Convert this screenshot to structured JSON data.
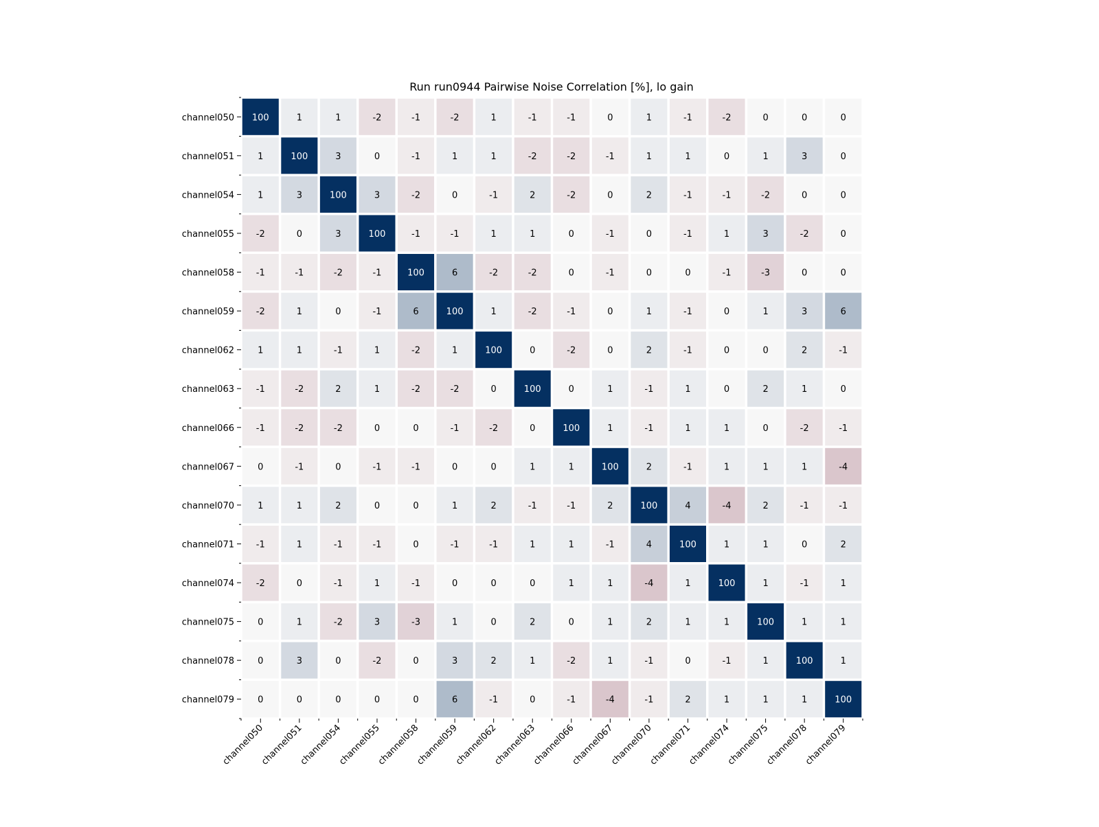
{
  "chart_data": {
    "type": "heatmap",
    "title": "Run run0944 Pairwise Noise Correlation [%], lo gain",
    "xlabel": "",
    "ylabel": "",
    "labels": [
      "channel050",
      "channel051",
      "channel054",
      "channel055",
      "channel058",
      "channel059",
      "channel062",
      "channel063",
      "channel066",
      "channel067",
      "channel070",
      "channel071",
      "channel074",
      "channel075",
      "channel078",
      "channel079"
    ],
    "matrix": [
      [
        100,
        1,
        1,
        -2,
        -1,
        -2,
        1,
        -1,
        -1,
        0,
        1,
        -1,
        -2,
        0,
        0,
        0
      ],
      [
        1,
        100,
        3,
        0,
        -1,
        1,
        1,
        -2,
        -2,
        -1,
        1,
        1,
        0,
        1,
        3,
        0
      ],
      [
        1,
        3,
        100,
        3,
        -2,
        0,
        -1,
        2,
        -2,
        0,
        2,
        -1,
        -1,
        -2,
        0,
        0
      ],
      [
        -2,
        0,
        3,
        100,
        -1,
        -1,
        1,
        1,
        0,
        -1,
        0,
        -1,
        1,
        3,
        -2,
        0
      ],
      [
        -1,
        -1,
        -2,
        -1,
        100,
        6,
        -2,
        -2,
        0,
        -1,
        0,
        0,
        -1,
        -3,
        0,
        0
      ],
      [
        -2,
        1,
        0,
        -1,
        6,
        100,
        1,
        -2,
        -1,
        0,
        1,
        -1,
        0,
        1,
        3,
        6
      ],
      [
        1,
        1,
        -1,
        1,
        -2,
        1,
        100,
        0,
        -2,
        0,
        2,
        -1,
        0,
        0,
        2,
        -1
      ],
      [
        -1,
        -2,
        2,
        1,
        -2,
        -2,
        0,
        100,
        0,
        1,
        -1,
        1,
        0,
        2,
        1,
        0
      ],
      [
        -1,
        -2,
        -2,
        0,
        0,
        -1,
        -2,
        0,
        100,
        1,
        -1,
        1,
        1,
        0,
        -2,
        -1
      ],
      [
        0,
        -1,
        0,
        -1,
        -1,
        0,
        0,
        1,
        1,
        100,
        2,
        -1,
        1,
        1,
        1,
        -4
      ],
      [
        1,
        1,
        2,
        0,
        0,
        1,
        2,
        -1,
        -1,
        2,
        100,
        4,
        -4,
        2,
        -1,
        -1
      ],
      [
        -1,
        1,
        -1,
        -1,
        0,
        -1,
        -1,
        1,
        1,
        -1,
        4,
        100,
        1,
        1,
        0,
        2
      ],
      [
        -2,
        0,
        -1,
        1,
        -1,
        0,
        0,
        0,
        1,
        1,
        -4,
        1,
        100,
        1,
        -1,
        1
      ],
      [
        0,
        1,
        -2,
        3,
        -3,
        1,
        0,
        2,
        0,
        1,
        2,
        1,
        1,
        100,
        1,
        1
      ],
      [
        0,
        3,
        0,
        -2,
        0,
        3,
        2,
        1,
        -2,
        1,
        -1,
        0,
        -1,
        1,
        100,
        1
      ],
      [
        0,
        0,
        0,
        0,
        0,
        6,
        -1,
        0,
        -1,
        -4,
        -1,
        2,
        1,
        1,
        1,
        100
      ]
    ],
    "colormap": {
      "name": "RdBu",
      "vmin": -20,
      "vmax": 20,
      "negative": "#67001f",
      "mid": "#f7f7f7",
      "positive": "#053061"
    },
    "grid": false,
    "legend": "none"
  }
}
